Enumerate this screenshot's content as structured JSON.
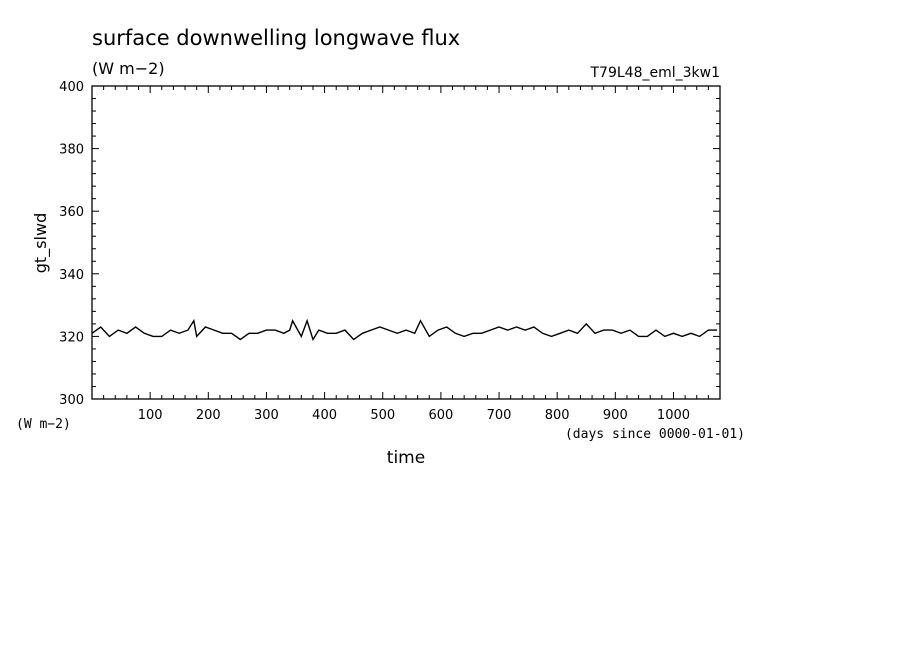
{
  "chart_data": {
    "type": "line",
    "title": "surface downwelling longwave flux",
    "subtitle": "(W m−2)",
    "run_label": "T79L48_eml_3kw1",
    "ylabel": "gt_slwd",
    "y_unit": "(W m−2)",
    "xlabel": "time",
    "x_unit": "(days since 0000-01-01)",
    "xlim": [
      0,
      1080
    ],
    "ylim": [
      300,
      400
    ],
    "x_ticks": [
      100,
      200,
      300,
      400,
      500,
      600,
      700,
      800,
      900,
      1000
    ],
    "y_ticks": [
      300,
      320,
      340,
      360,
      380,
      400
    ],
    "grid": false,
    "line_color": "#000000",
    "series": [
      {
        "x": [
          0,
          15,
          30,
          45,
          60,
          75,
          90,
          105,
          120,
          135,
          150,
          165,
          175,
          180,
          195,
          210,
          225,
          240,
          255,
          270,
          285,
          300,
          315,
          330,
          340,
          345,
          360,
          370,
          380,
          390,
          405,
          420,
          435,
          450,
          465,
          480,
          495,
          510,
          525,
          540,
          555,
          565,
          580,
          595,
          610,
          625,
          640,
          655,
          670,
          685,
          700,
          715,
          730,
          745,
          760,
          775,
          790,
          805,
          820,
          835,
          850,
          865,
          880,
          895,
          910,
          925,
          940,
          955,
          970,
          985,
          1000,
          1015,
          1030,
          1045,
          1060,
          1075
        ],
        "y": [
          321,
          323,
          320,
          322,
          321,
          323,
          321,
          320,
          320,
          322,
          321,
          322,
          325,
          320,
          323,
          322,
          321,
          321,
          319,
          321,
          321,
          322,
          322,
          321,
          322,
          325,
          320,
          325,
          319,
          322,
          321,
          321,
          322,
          319,
          321,
          322,
          323,
          322,
          321,
          322,
          321,
          325,
          320,
          322,
          323,
          321,
          320,
          321,
          321,
          322,
          323,
          322,
          323,
          322,
          323,
          321,
          320,
          321,
          322,
          321,
          324,
          321,
          322,
          322,
          321,
          322,
          320,
          320,
          322,
          320,
          321,
          320,
          321,
          320,
          322,
          322
        ]
      }
    ]
  }
}
